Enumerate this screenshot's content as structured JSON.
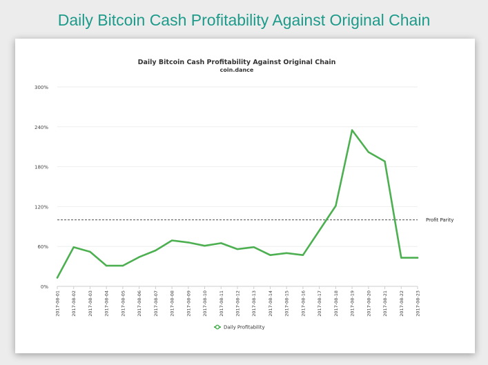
{
  "page": {
    "title": "Daily Bitcoin Cash Profitability Against Original Chain"
  },
  "chart_data": {
    "type": "line",
    "title": "Daily Bitcoin Cash Profitability Against Original Chain",
    "subtitle": "coin.dance",
    "xlabel": "",
    "ylabel": "",
    "ylim": [
      0,
      300
    ],
    "y_tick_values": [
      0,
      60,
      120,
      180,
      240,
      300
    ],
    "y_tick_labels": [
      "0%",
      "60%",
      "120%",
      "180%",
      "240%",
      "300%"
    ],
    "categories": [
      "2017-08-01",
      "2017-08-02",
      "2017-08-03",
      "2017-08-04",
      "2017-08-05",
      "2017-08-06",
      "2017-08-07",
      "2017-08-08",
      "2017-08-09",
      "2017-08-10",
      "2017-08-11",
      "2017-08-12",
      "2017-08-13",
      "2017-08-14",
      "2017-08-15",
      "2017-08-16",
      "2017-08-17",
      "2017-08-18",
      "2017-08-19",
      "2017-08-20",
      "2017-08-21",
      "2017-08-22",
      "2017-08-23"
    ],
    "series": [
      {
        "name": "Daily Profitability",
        "color": "#4caf50",
        "values": [
          13,
          59,
          52,
          31,
          31,
          44,
          54,
          69,
          66,
          61,
          65,
          56,
          59,
          47,
          50,
          47,
          84,
          121,
          235,
          202,
          188,
          43,
          43
        ]
      }
    ],
    "reference_line": {
      "label": "Profit Parity",
      "value": 100,
      "style": "dashed"
    },
    "grid": true,
    "legend": "bottom-center"
  }
}
